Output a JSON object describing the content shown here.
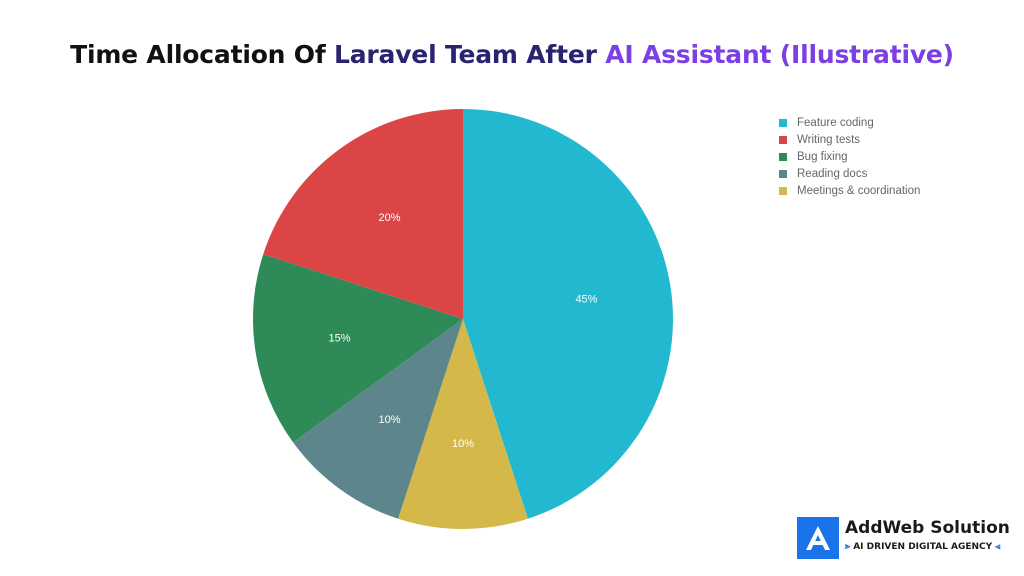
{
  "colors": {
    "title_gradient": [
      "#111111",
      "#2a2370",
      "#7b3fe4"
    ],
    "label_text": "#ffffff",
    "brand_blue": "#1a73e8"
  },
  "chart_data": {
    "type": "pie",
    "title": "Time Allocation Of Laravel Team After AI Assistant (Illustrative)",
    "title_parts": [
      "Time Allocation Of ",
      "Laravel Team After ",
      "AI Assistant (Illustrative)"
    ],
    "start_angle": "top",
    "direction": "clockwise",
    "legend_position": "top-right",
    "slices": [
      {
        "label": "Feature coding",
        "value": 45,
        "value_label": "45%",
        "color": "#22b8cf"
      },
      {
        "label": "Meetings & coordination",
        "value": 10,
        "value_label": "10%",
        "color": "#d4b84a"
      },
      {
        "label": "Reading docs",
        "value": 10,
        "value_label": "10%",
        "color": "#5d868c"
      },
      {
        "label": "Bug fixing",
        "value": 15,
        "value_label": "15%",
        "color": "#2e8b57"
      },
      {
        "label": "Writing tests",
        "value": 20,
        "value_label": "20%",
        "color": "#db4545"
      }
    ],
    "legend": [
      {
        "label": "Feature coding",
        "color": "#22b8cf"
      },
      {
        "label": "Writing tests",
        "color": "#db4545"
      },
      {
        "label": "Bug fixing",
        "color": "#2e8b57"
      },
      {
        "label": "Reading docs",
        "color": "#5d868c"
      },
      {
        "label": "Meetings & coordination",
        "color": "#d4b84a"
      }
    ]
  },
  "brand": {
    "name": "AddWeb Solution",
    "tagline": "AI DRIVEN DIGITAL AGENCY",
    "tagline_arrow_left": "⪢",
    "tagline_arrow_right": "⪡",
    "logo_icon": "addweb-logo-icon"
  }
}
